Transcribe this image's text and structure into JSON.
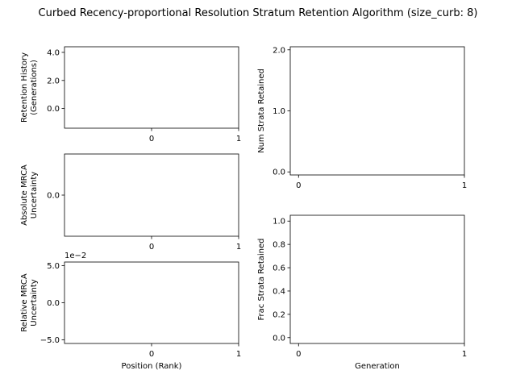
{
  "figure": {
    "title": "Curbed Recency-proportional Resolution Stratum Retention Algorithm (size_curb: 8)"
  },
  "chart_data": [
    {
      "id": "retention-history",
      "type": "scatter",
      "ylabel_lines": [
        "Retention History",
        "(Generations)"
      ],
      "xlabel": "",
      "xlim": [
        -1,
        1
      ],
      "ylim": [
        -1.4,
        4.4
      ],
      "xticks": [
        0,
        1
      ],
      "xtick_labels": [
        "0",
        "1"
      ],
      "yticks": [
        0,
        2,
        4
      ],
      "ytick_labels": [
        "0.0",
        "2.0",
        "4.0"
      ],
      "offset_text": "",
      "series": []
    },
    {
      "id": "absolute-mrca-uncertainty",
      "type": "line",
      "ylabel_lines": [
        "Absolute MRCA",
        "Uncertainty"
      ],
      "xlabel": "",
      "xlim": [
        -1,
        1
      ],
      "ylim": [
        -0.055,
        0.055
      ],
      "xticks": [
        0,
        1
      ],
      "xtick_labels": [
        "0",
        "1"
      ],
      "yticks": [
        0
      ],
      "ytick_labels": [
        "0.0"
      ],
      "offset_text": "",
      "series": []
    },
    {
      "id": "relative-mrca-uncertainty",
      "type": "line",
      "ylabel_lines": [
        "Relative MRCA",
        "Uncertainty"
      ],
      "xlabel": "Position (Rank)",
      "xlim": [
        -1,
        1
      ],
      "ylim": [
        -0.055,
        0.055
      ],
      "xticks": [
        0,
        1
      ],
      "xtick_labels": [
        "0",
        "1"
      ],
      "yticks": [
        -0.05,
        0,
        0.05
      ],
      "ytick_labels": [
        "−5.0",
        "0.0",
        "5.0"
      ],
      "offset_text": "1e−2",
      "series": []
    },
    {
      "id": "num-strata-retained",
      "type": "line",
      "ylabel_lines": [
        "Num Strata Retained"
      ],
      "xlabel": "",
      "xlim": [
        -0.05,
        1
      ],
      "ylim": [
        -0.05,
        2.05
      ],
      "xticks": [
        0,
        1
      ],
      "xtick_labels": [
        "0",
        "1"
      ],
      "yticks": [
        0,
        1,
        2
      ],
      "ytick_labels": [
        "0.0",
        "1.0",
        "2.0"
      ],
      "offset_text": "",
      "series": []
    },
    {
      "id": "frac-strata-retained",
      "type": "line",
      "ylabel_lines": [
        "Frac Strata Retained"
      ],
      "xlabel": "Generation",
      "xlim": [
        -0.05,
        1
      ],
      "ylim": [
        -0.05,
        1.05
      ],
      "xticks": [
        0,
        1
      ],
      "xtick_labels": [
        "0",
        "1"
      ],
      "yticks": [
        0,
        0.2,
        0.4,
        0.6,
        0.8,
        1.0
      ],
      "ytick_labels": [
        "0.0",
        "0.2",
        "0.4",
        "0.6",
        "0.8",
        "1.0"
      ],
      "offset_text": "",
      "series": []
    }
  ]
}
